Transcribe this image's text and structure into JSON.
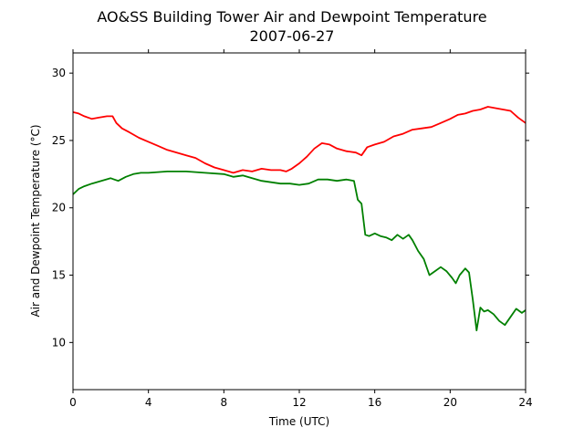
{
  "chart_data": {
    "type": "line",
    "title": "AO&SS Building Tower Air and Dewpoint Temperature",
    "subtitle": "2007-06-27",
    "xlabel": "Time (UTC)",
    "ylabel": "Air and Dewpoint Temperature (°C)",
    "xlim": [
      0,
      24
    ],
    "ylim": [
      6.5,
      31.5
    ],
    "xticks": [
      0,
      4,
      8,
      12,
      16,
      20,
      24
    ],
    "yticks": [
      10,
      15,
      20,
      25,
      30
    ],
    "grid": false,
    "legend": "none",
    "series": [
      {
        "color": "#ff0000",
        "x": [
          0,
          0.3,
          0.6,
          1.0,
          1.4,
          1.8,
          2.1,
          2.3,
          2.6,
          3.0,
          3.5,
          4.0,
          4.5,
          5.0,
          5.5,
          6.0,
          6.5,
          7.0,
          7.5,
          8.0,
          8.5,
          9.0,
          9.5,
          10.0,
          10.5,
          11.0,
          11.3,
          11.6,
          12.0,
          12.4,
          12.8,
          13.2,
          13.6,
          14.0,
          14.5,
          15.0,
          15.3,
          15.6,
          16.0,
          16.5,
          17.0,
          17.5,
          18.0,
          18.5,
          19.0,
          19.5,
          20.0,
          20.4,
          20.8,
          21.2,
          21.6,
          22.0,
          22.4,
          22.8,
          23.2,
          23.6,
          24.0
        ],
        "y": [
          27.1,
          27.0,
          26.8,
          26.6,
          26.7,
          26.8,
          26.8,
          26.3,
          25.9,
          25.6,
          25.2,
          24.9,
          24.6,
          24.3,
          24.1,
          23.9,
          23.7,
          23.3,
          23.0,
          22.8,
          22.6,
          22.8,
          22.7,
          22.9,
          22.8,
          22.8,
          22.7,
          22.9,
          23.3,
          23.8,
          24.4,
          24.8,
          24.7,
          24.4,
          24.2,
          24.1,
          23.9,
          24.5,
          24.7,
          24.9,
          25.3,
          25.5,
          25.8,
          25.9,
          26.0,
          26.3,
          26.6,
          26.9,
          27.0,
          27.2,
          27.3,
          27.5,
          27.4,
          27.3,
          27.2,
          26.7,
          26.3
        ]
      },
      {
        "color": "#008000",
        "x": [
          0,
          0.3,
          0.6,
          1.0,
          1.5,
          2.0,
          2.4,
          2.8,
          3.2,
          3.6,
          4.0,
          5.0,
          6.0,
          7.0,
          8.0,
          8.5,
          9.0,
          9.5,
          10.0,
          10.5,
          11.0,
          11.5,
          12.0,
          12.5,
          13.0,
          13.5,
          14.0,
          14.5,
          14.9,
          15.1,
          15.3,
          15.5,
          15.7,
          16.0,
          16.3,
          16.6,
          16.9,
          17.2,
          17.5,
          17.8,
          18.0,
          18.3,
          18.6,
          18.9,
          19.2,
          19.5,
          19.8,
          20.1,
          20.3,
          20.5,
          20.8,
          21.0,
          21.2,
          21.4,
          21.6,
          21.8,
          22.0,
          22.3,
          22.6,
          22.9,
          23.2,
          23.5,
          23.8,
          24.0
        ],
        "y": [
          21.0,
          21.4,
          21.6,
          21.8,
          22.0,
          22.2,
          22.0,
          22.3,
          22.5,
          22.6,
          22.6,
          22.7,
          22.7,
          22.6,
          22.5,
          22.3,
          22.4,
          22.2,
          22.0,
          21.9,
          21.8,
          21.8,
          21.7,
          21.8,
          22.1,
          22.1,
          22.0,
          22.1,
          22.0,
          20.6,
          20.3,
          18.0,
          17.9,
          18.1,
          17.9,
          17.8,
          17.6,
          18.0,
          17.7,
          18.0,
          17.6,
          16.8,
          16.2,
          15.0,
          15.3,
          15.6,
          15.3,
          14.8,
          14.4,
          15.0,
          15.5,
          15.2,
          13.2,
          10.9,
          12.6,
          12.3,
          12.4,
          12.1,
          11.6,
          11.3,
          11.9,
          12.5,
          12.2,
          12.4
        ]
      }
    ]
  }
}
